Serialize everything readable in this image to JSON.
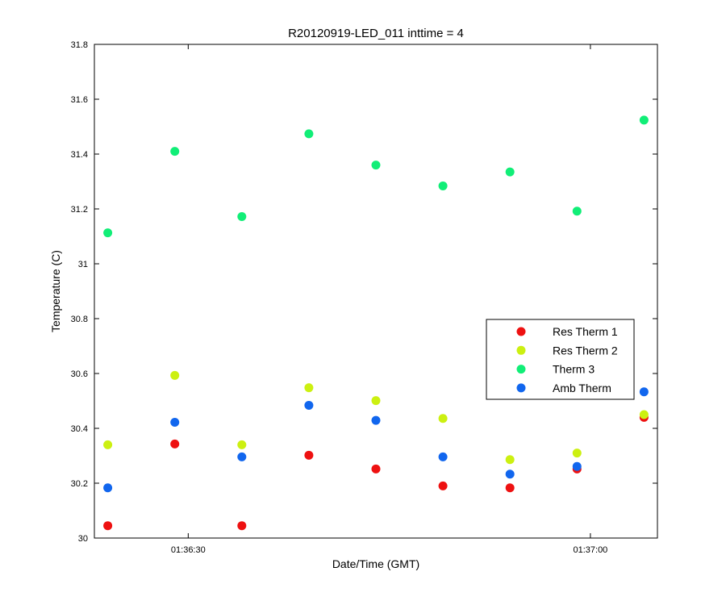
{
  "chart_data": {
    "type": "scatter",
    "title": "R20120919-LED_011 inttime = 4",
    "xlabel": "Date/Time (GMT)",
    "ylabel": "Temperature (C)",
    "x": [
      "01:36:24",
      "01:36:29",
      "01:36:34",
      "01:36:39",
      "01:36:44",
      "01:36:49",
      "01:36:54",
      "01:36:59",
      "01:37:04"
    ],
    "x_ticks": [
      {
        "value": "01:36:30",
        "label": "01:36:30"
      },
      {
        "value": "01:37:00",
        "label": "01:37:00"
      }
    ],
    "xlim": [
      "01:36:23",
      "01:37:05"
    ],
    "ylim": [
      30,
      31.8
    ],
    "y_ticks": [
      {
        "value": 30,
        "label": "30"
      },
      {
        "value": 30.2,
        "label": "30.2"
      },
      {
        "value": 30.4,
        "label": "30.4"
      },
      {
        "value": 30.6,
        "label": "30.6"
      },
      {
        "value": 30.8,
        "label": "30.8"
      },
      {
        "value": 31,
        "label": "31"
      },
      {
        "value": 31.2,
        "label": "31.2"
      },
      {
        "value": 31.4,
        "label": "31.4"
      },
      {
        "value": 31.6,
        "label": "31.6"
      },
      {
        "value": 31.8,
        "label": "31.8"
      }
    ],
    "grid": false,
    "legend_position": "right",
    "series": [
      {
        "name": "Res Therm 1",
        "color": "#ee1111",
        "values": [
          30.045,
          30.343,
          30.045,
          30.302,
          30.252,
          30.19,
          30.183,
          30.252,
          30.44
        ]
      },
      {
        "name": "Res Therm 2",
        "color": "#ccf011",
        "values": [
          30.34,
          30.593,
          30.34,
          30.548,
          30.501,
          30.436,
          30.286,
          30.31,
          30.45
        ]
      },
      {
        "name": "Therm 3",
        "color": "#11ee77",
        "values": [
          31.113,
          31.41,
          31.172,
          31.474,
          31.36,
          31.284,
          31.335,
          31.192,
          31.524
        ]
      },
      {
        "name": "Amb Therm",
        "color": "#1166ee",
        "values": [
          30.183,
          30.422,
          30.296,
          30.484,
          30.429,
          30.296,
          30.233,
          30.261,
          30.533
        ]
      }
    ]
  }
}
